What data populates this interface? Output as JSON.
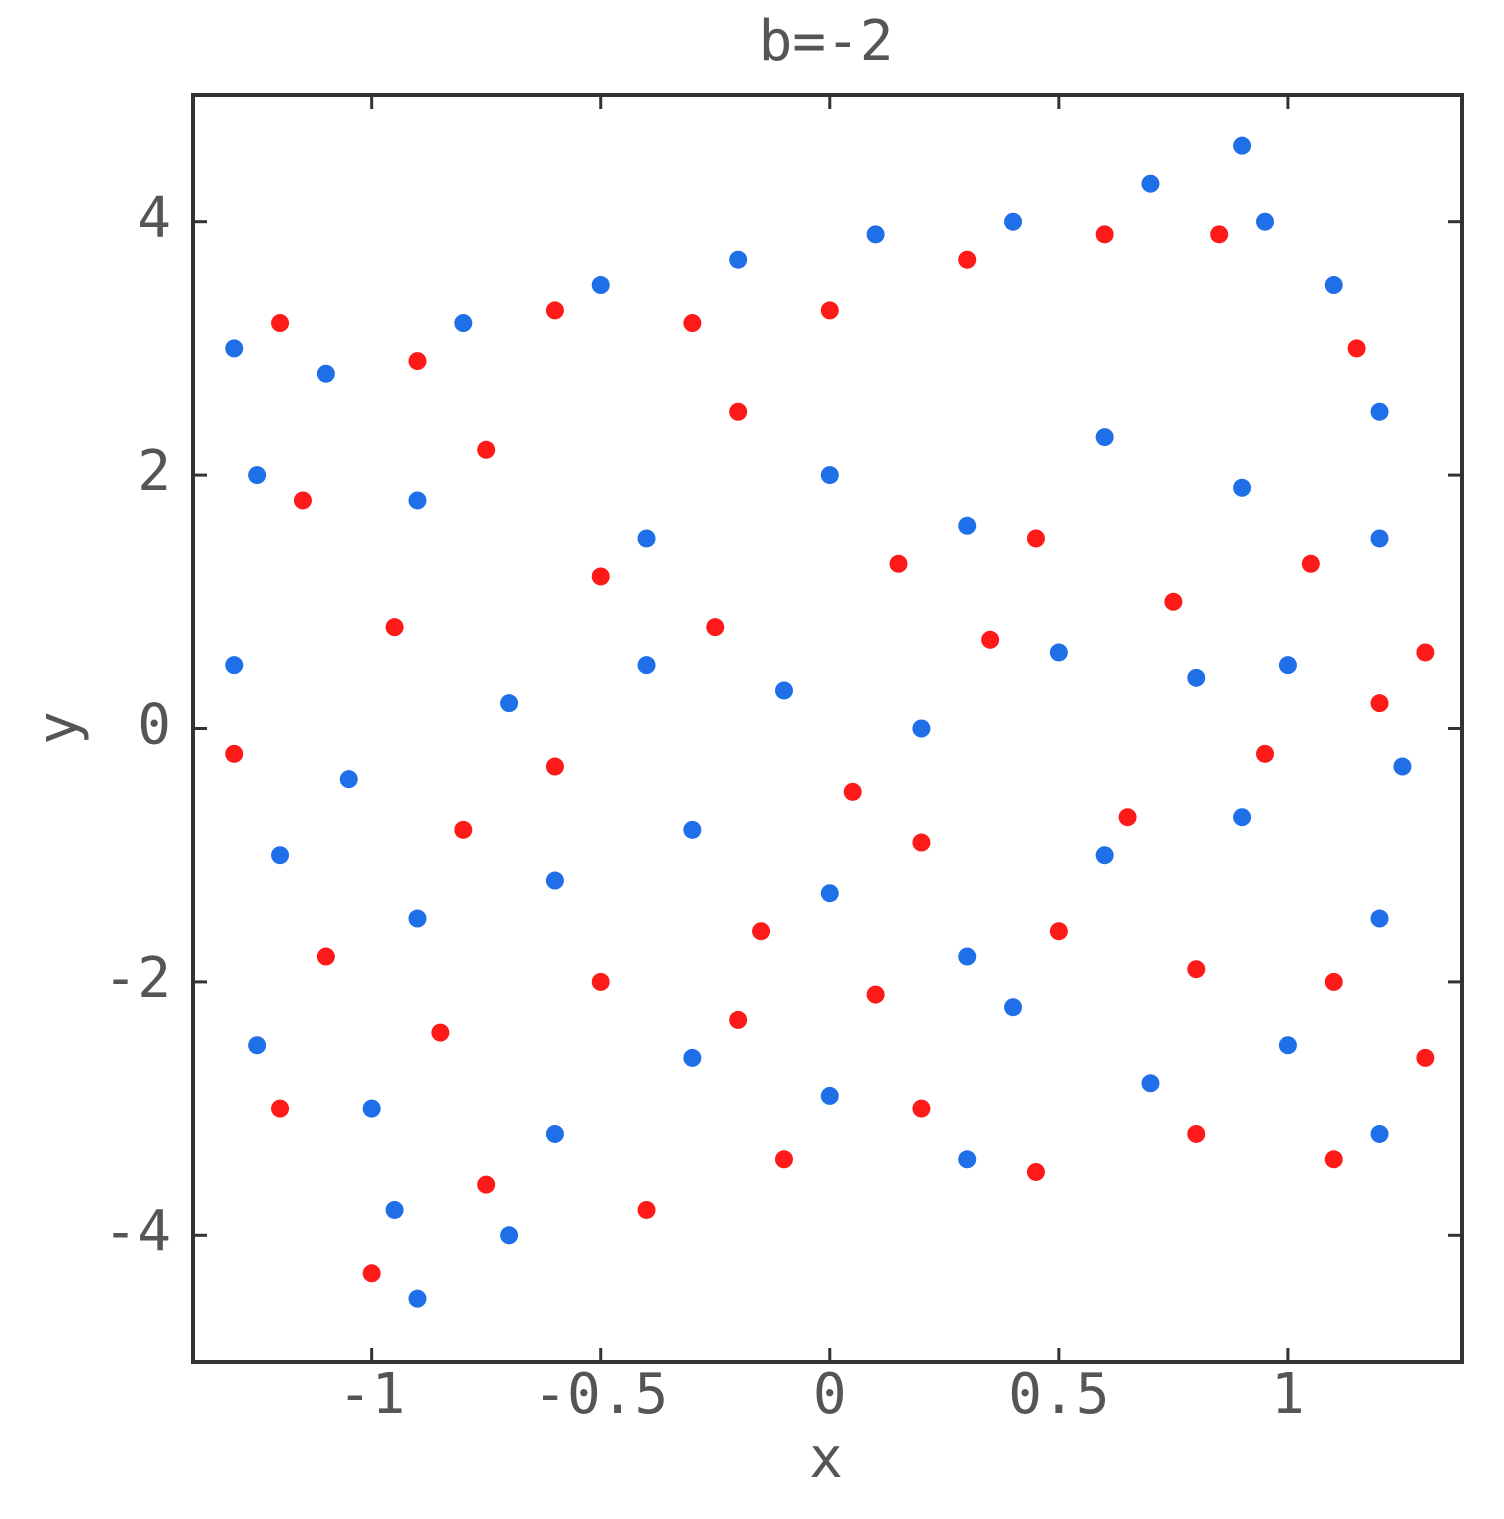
{
  "chart_data": {
    "type": "scatter",
    "title": "b=-2",
    "xlabel": "x",
    "ylabel": "y",
    "xlim": [
      -1.39,
      1.38
    ],
    "ylim": [
      -5,
      5
    ],
    "xticks": [
      -1,
      -0.5,
      0,
      0.5,
      1
    ],
    "yticks": [
      -4,
      -2,
      0,
      2,
      4
    ],
    "series": [
      {
        "color": "#1f6fe8",
        "x": [
          -1.3,
          -1.1,
          -0.8,
          -0.5,
          -0.2,
          0.1,
          0.4,
          0.7,
          0.9,
          0.95,
          1.1,
          1.2,
          -1.25,
          -0.9,
          -0.4,
          0,
          0.3,
          0.6,
          0.9,
          1.2,
          -1.3,
          -1.05,
          -0.7,
          -0.4,
          -0.1,
          0.2,
          0.5,
          0.8,
          1.0,
          1.25,
          -1.2,
          -0.9,
          -0.6,
          -0.3,
          0,
          0.3,
          0.6,
          0.9,
          1.2,
          -1.25,
          -1.0,
          -0.95,
          -0.9,
          -0.6,
          -0.3,
          0,
          0.4,
          0.7,
          1.0,
          1.2,
          -0.7,
          0.3
        ],
        "values": [
          3.0,
          2.8,
          3.2,
          3.5,
          3.7,
          3.9,
          4.0,
          4.3,
          4.6,
          4.0,
          3.5,
          2.5,
          2.0,
          1.8,
          1.5,
          2.0,
          1.6,
          2.3,
          1.9,
          1.5,
          0.5,
          -0.4,
          0.2,
          0.5,
          0.3,
          0,
          0.6,
          0.4,
          0.5,
          -0.3,
          -1.0,
          -1.5,
          -1.2,
          -0.8,
          -1.3,
          -1.8,
          -1.0,
          -0.7,
          -1.5,
          -2.5,
          -3.0,
          -3.8,
          -4.5,
          -3.2,
          -2.6,
          -2.9,
          -2.2,
          -2.8,
          -2.5,
          -3.2,
          -4.0,
          -3.4
        ]
      },
      {
        "color": "#ff1a1a",
        "x": [
          -1.2,
          -0.9,
          -0.6,
          -0.3,
          0,
          0.3,
          0.6,
          0.85,
          1.15,
          -1.15,
          -0.75,
          -0.5,
          -0.2,
          0.15,
          0.45,
          0.75,
          1.05,
          1.3,
          -1.3,
          -0.95,
          -0.6,
          -0.25,
          0.05,
          0.35,
          0.65,
          0.95,
          1.2,
          -1.1,
          -0.8,
          -0.5,
          -0.15,
          0.2,
          0.5,
          0.8,
          1.1,
          1.3,
          -1.2,
          -0.85,
          -1.0,
          -0.75,
          -0.4,
          -0.1,
          0.2,
          0.45,
          0.8,
          1.1,
          -0.2,
          0.1
        ],
        "values": [
          3.2,
          2.9,
          3.3,
          3.2,
          3.3,
          3.7,
          3.9,
          3.9,
          3.0,
          1.8,
          2.2,
          1.2,
          2.5,
          1.3,
          1.5,
          1.0,
          1.3,
          0.6,
          -0.2,
          0.8,
          -0.3,
          0.8,
          -0.5,
          0.7,
          -0.7,
          -0.2,
          0.2,
          -1.8,
          -0.8,
          -2.0,
          -1.6,
          -0.9,
          -1.6,
          -1.9,
          -2.0,
          -2.6,
          -3.0,
          -2.4,
          -4.3,
          -3.6,
          -3.8,
          -3.4,
          -3.0,
          -3.5,
          -3.2,
          -3.4,
          -2.3,
          -2.1
        ]
      }
    ]
  }
}
